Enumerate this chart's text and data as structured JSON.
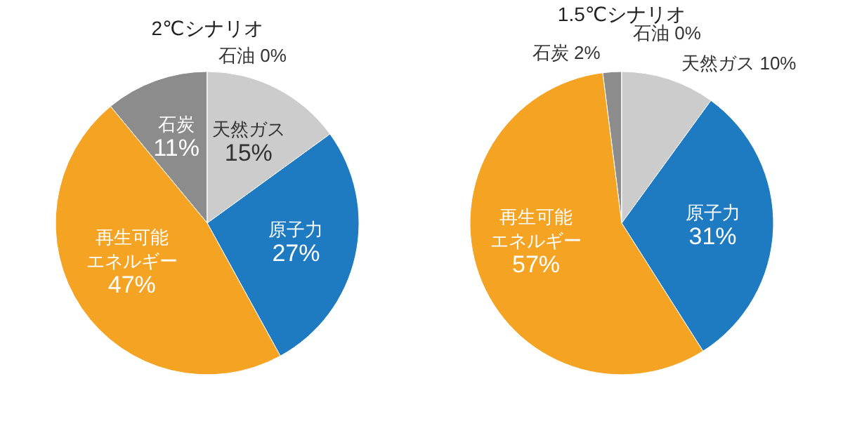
{
  "chart_data": [
    {
      "type": "pie",
      "title": "2℃シナリオ",
      "categories": [
        "石炭",
        "石油",
        "天然ガス",
        "原子力",
        "再生可能エネルギー"
      ],
      "values": [
        11,
        0,
        15,
        27,
        47
      ],
      "value_labels": [
        "11%",
        "0%",
        "15%",
        "27%",
        "47%"
      ],
      "colors": [
        "#8c8c8c",
        "#595959",
        "#cccccc",
        "#1f7bc1",
        "#f4a323"
      ]
    },
    {
      "type": "pie",
      "title": "1.5℃シナリオ",
      "categories": [
        "石炭",
        "石油",
        "天然ガス",
        "原子力",
        "再生可能エネルギー"
      ],
      "values": [
        2,
        0,
        10,
        31,
        57
      ],
      "value_labels": [
        "2%",
        "0%",
        "10%",
        "31%",
        "57%"
      ],
      "colors": [
        "#8c8c8c",
        "#595959",
        "#cccccc",
        "#1f7bc1",
        "#f4a323"
      ]
    }
  ]
}
